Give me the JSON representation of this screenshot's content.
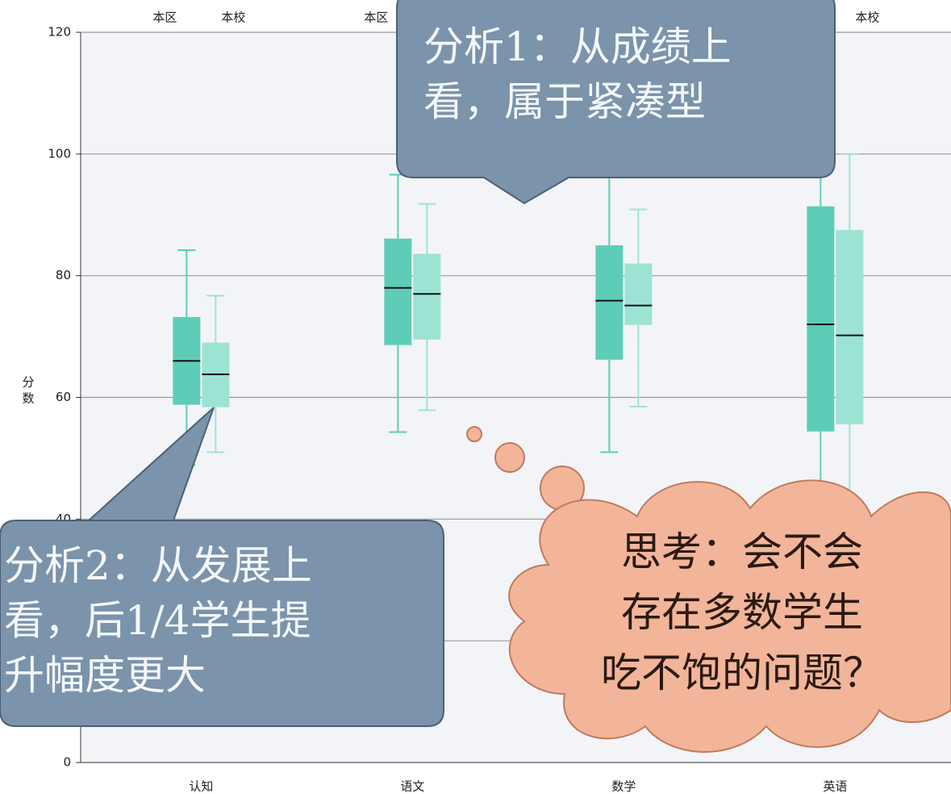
{
  "chart_data": {
    "type": "box",
    "y_label": "分数",
    "categories": [
      "认知",
      "语文",
      "数学",
      "英语"
    ],
    "series": [
      {
        "name": "本区",
        "color": "#5ecdb8",
        "max": [
          84.2,
          96.6,
          98,
          100
        ],
        "q3": [
          73.2,
          86.1,
          85,
          91.4
        ],
        "median": [
          66,
          78,
          75.9,
          72
        ],
        "q1": [
          58.8,
          68.6,
          66.2,
          54.4
        ],
        "min": [
          48.9,
          54.3,
          51,
          36
        ]
      },
      {
        "name": "本校",
        "color": "#9de3d4",
        "max": [
          76.7,
          91.8,
          90.9,
          100
        ],
        "q3": [
          69,
          83.6,
          82,
          87.5
        ],
        "median": [
          63.8,
          77,
          75.1,
          70.2
        ],
        "q1": [
          58.4,
          69.5,
          71.9,
          55.6
        ],
        "min": [
          51,
          57.9,
          58.5,
          40
        ]
      }
    ],
    "ylim": [
      0,
      120
    ],
    "yticks": [
      0,
      20,
      40,
      60,
      80,
      100,
      120
    ],
    "grid": true
  },
  "annotations": [
    {
      "lines": [
        "分析1：从成绩上",
        "看，属于紧凑型"
      ]
    },
    {
      "lines": [
        "分析2：从发展上",
        "看，后1/4学生提",
        "升幅度更大"
      ]
    },
    {
      "lines": [
        "思考：会不会",
        "存在多数学生",
        "吃不饱的问题？"
      ]
    }
  ]
}
